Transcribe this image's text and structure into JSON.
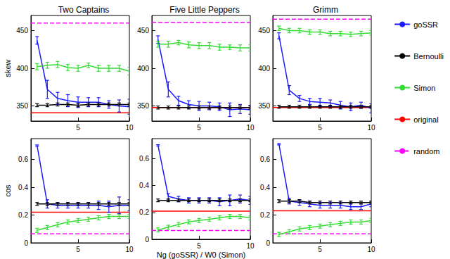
{
  "chart_data": [
    {
      "type": "line",
      "title": "Two Captains",
      "ylabel": "skew",
      "legend": "right",
      "grid": false,
      "x": [
        1,
        2,
        3,
        4,
        5,
        6,
        7,
        8,
        9,
        10
      ],
      "xlim": [
        0.4,
        10
      ],
      "xticks": [
        5,
        10
      ],
      "ylim": [
        330,
        470
      ],
      "yticks": [
        350,
        400,
        450
      ],
      "series": [
        {
          "name": "goSSR",
          "color": "#1a1aff",
          "values": [
            437,
            372,
            360,
            357,
            355,
            355,
            355,
            352,
            350,
            349
          ],
          "errors": [
            5,
            12,
            8,
            8,
            7,
            6,
            6,
            5,
            8,
            10
          ]
        },
        {
          "name": "Bernoulli",
          "color": "#000000",
          "values": [
            351,
            351,
            352,
            352,
            351,
            352,
            352,
            352,
            352,
            352
          ],
          "errors": [
            2,
            2,
            2,
            2,
            2,
            2,
            2,
            2,
            2,
            2
          ]
        },
        {
          "name": "Simon",
          "color": "#33dd33",
          "values": [
            402,
            404,
            405,
            401,
            400,
            404,
            400,
            400,
            400,
            396
          ],
          "errors": [
            4,
            4,
            4,
            4,
            4,
            3,
            4,
            4,
            4,
            5
          ]
        },
        {
          "name": "original",
          "type": "hline",
          "color": "#ff0000",
          "line_style": "solid",
          "y": 341
        },
        {
          "name": "random",
          "type": "hline",
          "color": "#ff00ff",
          "line_style": "dashed",
          "y": 460
        }
      ]
    },
    {
      "type": "line",
      "title": "Five Little Peppers",
      "grid": false,
      "x": [
        1,
        2,
        3,
        4,
        5,
        6,
        7,
        8,
        9,
        10
      ],
      "xlim": [
        0.4,
        10
      ],
      "xticks": [
        5,
        10
      ],
      "ylim": [
        330,
        470
      ],
      "yticks": [
        350,
        400,
        450
      ],
      "series": [
        {
          "name": "goSSR",
          "color": "#1a1aff",
          "values": [
            438,
            372,
            357,
            352,
            350,
            350,
            349,
            345,
            346,
            345
          ],
          "errors": [
            5,
            10,
            6,
            5,
            6,
            5,
            5,
            9,
            6,
            6
          ]
        },
        {
          "name": "Bernoulli",
          "color": "#000000",
          "values": [
            348,
            348,
            348,
            348,
            348,
            348,
            348,
            348,
            348,
            348
          ],
          "errors": [
            2,
            2,
            2,
            2,
            2,
            2,
            2,
            2,
            2,
            2
          ]
        },
        {
          "name": "Simon",
          "color": "#33dd33",
          "values": [
            432,
            432,
            434,
            431,
            430,
            430,
            428,
            428,
            427,
            427
          ],
          "errors": [
            4,
            4,
            3,
            4,
            4,
            4,
            4,
            3,
            4,
            4
          ]
        },
        {
          "name": "original",
          "type": "hline",
          "color": "#ff0000",
          "line_style": "solid",
          "y": 348
        },
        {
          "name": "random",
          "type": "hline",
          "color": "#ff00ff",
          "line_style": "dashed",
          "y": 461
        }
      ]
    },
    {
      "type": "line",
      "title": "Grimm",
      "grid": false,
      "x": [
        1,
        2,
        3,
        4,
        5,
        6,
        7,
        8,
        9,
        10
      ],
      "xlim": [
        0.4,
        10
      ],
      "xticks": [
        5,
        10
      ],
      "ylim": [
        330,
        470
      ],
      "yticks": [
        350,
        400,
        450
      ],
      "series": [
        {
          "name": "goSSR",
          "color": "#1a1aff",
          "values": [
            443,
            371,
            360,
            356,
            355,
            354,
            351,
            349,
            351,
            347
          ],
          "errors": [
            4,
            6,
            4,
            4,
            5,
            4,
            5,
            5,
            4,
            6
          ]
        },
        {
          "name": "Bernoulli",
          "color": "#000000",
          "values": [
            349,
            349,
            349,
            349,
            349,
            349,
            349,
            349,
            349,
            349
          ],
          "errors": [
            2,
            2,
            2,
            2,
            2,
            2,
            2,
            2,
            2,
            2
          ]
        },
        {
          "name": "Simon",
          "color": "#33dd33",
          "values": [
            453,
            450,
            450,
            448,
            448,
            446,
            446,
            445,
            446,
            447
          ],
          "errors": [
            3,
            3,
            3,
            3,
            3,
            3,
            3,
            3,
            3,
            3
          ]
        },
        {
          "name": "original",
          "type": "hline",
          "color": "#ff0000",
          "line_style": "solid",
          "y": 348
        },
        {
          "name": "random",
          "type": "hline",
          "color": "#ff00ff",
          "line_style": "dashed",
          "y": 465
        }
      ]
    },
    {
      "type": "line",
      "ylabel": "cos",
      "grid": false,
      "x": [
        1,
        2,
        3,
        4,
        5,
        6,
        7,
        8,
        9,
        10
      ],
      "xlim": [
        0.4,
        10
      ],
      "xticks": [
        5,
        10
      ],
      "ylim": [
        0,
        0.75
      ],
      "yticks": [
        0,
        0.2,
        0.4,
        0.6
      ],
      "series": [
        {
          "name": "goSSR",
          "color": "#1a1aff",
          "values": [
            0.7,
            0.28,
            0.27,
            0.27,
            0.27,
            0.27,
            0.27,
            0.26,
            0.27,
            0.27
          ],
          "errors": [
            0.005,
            0.03,
            0.02,
            0.02,
            0.02,
            0.02,
            0.03,
            0.04,
            0.06,
            0.04
          ]
        },
        {
          "name": "Bernoulli",
          "color": "#000000",
          "values": [
            0.28,
            0.28,
            0.28,
            0.28,
            0.28,
            0.28,
            0.28,
            0.28,
            0.28,
            0.28
          ],
          "errors": [
            0.01,
            0.01,
            0.01,
            0.01,
            0.01,
            0.01,
            0.01,
            0.01,
            0.01,
            0.01
          ]
        },
        {
          "name": "Simon",
          "color": "#33dd33",
          "values": [
            0.09,
            0.11,
            0.13,
            0.15,
            0.16,
            0.17,
            0.18,
            0.19,
            0.19,
            0.19
          ],
          "errors": [
            0.015,
            0.015,
            0.015,
            0.015,
            0.015,
            0.015,
            0.015,
            0.015,
            0.015,
            0.015
          ]
        },
        {
          "name": "original",
          "type": "hline",
          "color": "#ff0000",
          "line_style": "solid",
          "y": 0.22
        },
        {
          "name": "random",
          "type": "hline",
          "color": "#ff00ff",
          "line_style": "dashed",
          "y": 0.065
        }
      ]
    },
    {
      "type": "line",
      "xlabel": "Ng (goSSR) / W0 (Simon)",
      "grid": false,
      "x": [
        1,
        2,
        3,
        4,
        5,
        6,
        7,
        8,
        9,
        10
      ],
      "xlim": [
        0.4,
        10
      ],
      "xticks": [
        5,
        10
      ],
      "ylim": [
        0,
        0.75
      ],
      "yticks": [
        0,
        0.2,
        0.4,
        0.6
      ],
      "series": [
        {
          "name": "goSSR",
          "color": "#1a1aff",
          "values": [
            0.7,
            0.32,
            0.3,
            0.29,
            0.29,
            0.29,
            0.28,
            0.29,
            0.3,
            0.29
          ],
          "errors": [
            0.005,
            0.02,
            0.02,
            0.02,
            0.02,
            0.02,
            0.03,
            0.04,
            0.03,
            0.03
          ]
        },
        {
          "name": "Bernoulli",
          "color": "#000000",
          "values": [
            0.29,
            0.29,
            0.29,
            0.29,
            0.29,
            0.29,
            0.29,
            0.29,
            0.29,
            0.29
          ],
          "errors": [
            0.01,
            0.01,
            0.01,
            0.01,
            0.01,
            0.01,
            0.01,
            0.01,
            0.01,
            0.01
          ]
        },
        {
          "name": "Simon",
          "color": "#33dd33",
          "values": [
            0.07,
            0.09,
            0.11,
            0.13,
            0.14,
            0.15,
            0.16,
            0.17,
            0.17,
            0.16
          ],
          "errors": [
            0.015,
            0.015,
            0.015,
            0.015,
            0.015,
            0.015,
            0.015,
            0.015,
            0.015,
            0.015
          ]
        },
        {
          "name": "original",
          "type": "hline",
          "color": "#ff0000",
          "line_style": "solid",
          "y": 0.21
        },
        {
          "name": "random",
          "type": "hline",
          "color": "#ff00ff",
          "line_style": "dashed",
          "y": 0.065
        }
      ]
    },
    {
      "type": "line",
      "grid": false,
      "x": [
        1,
        2,
        3,
        4,
        5,
        6,
        7,
        8,
        9,
        10
      ],
      "xlim": [
        0.4,
        10
      ],
      "xticks": [
        5,
        10
      ],
      "ylim": [
        0,
        0.75
      ],
      "yticks": [
        0,
        0.2,
        0.4,
        0.6
      ],
      "series": [
        {
          "name": "goSSR",
          "color": "#1a1aff",
          "values": [
            0.71,
            0.3,
            0.29,
            0.28,
            0.27,
            0.27,
            0.27,
            0.26,
            0.26,
            0.28
          ],
          "errors": [
            0.005,
            0.02,
            0.02,
            0.02,
            0.02,
            0.02,
            0.02,
            0.02,
            0.02,
            0.02
          ]
        },
        {
          "name": "Bernoulli",
          "color": "#000000",
          "values": [
            0.3,
            0.3,
            0.3,
            0.29,
            0.29,
            0.29,
            0.29,
            0.29,
            0.29,
            0.29
          ],
          "errors": [
            0.01,
            0.01,
            0.01,
            0.01,
            0.01,
            0.01,
            0.01,
            0.01,
            0.01,
            0.01
          ]
        },
        {
          "name": "Simon",
          "color": "#33dd33",
          "values": [
            0.06,
            0.08,
            0.1,
            0.11,
            0.12,
            0.13,
            0.14,
            0.15,
            0.15,
            0.16
          ],
          "errors": [
            0.015,
            0.015,
            0.015,
            0.015,
            0.015,
            0.015,
            0.015,
            0.015,
            0.015,
            0.015
          ]
        },
        {
          "name": "original",
          "type": "hline",
          "color": "#ff0000",
          "line_style": "solid",
          "y": 0.23
        },
        {
          "name": "random",
          "type": "hline",
          "color": "#ff00ff",
          "line_style": "dashed",
          "y": 0.065
        }
      ]
    }
  ]
}
